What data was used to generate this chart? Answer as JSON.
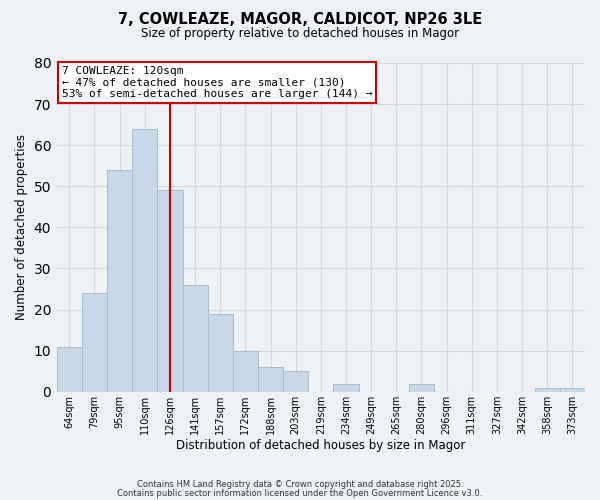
{
  "title": "7, COWLEAZE, MAGOR, CALDICOT, NP26 3LE",
  "subtitle": "Size of property relative to detached houses in Magor",
  "xlabel": "Distribution of detached houses by size in Magor",
  "ylabel": "Number of detached properties",
  "categories": [
    "64sqm",
    "79sqm",
    "95sqm",
    "110sqm",
    "126sqm",
    "141sqm",
    "157sqm",
    "172sqm",
    "188sqm",
    "203sqm",
    "219sqm",
    "234sqm",
    "249sqm",
    "265sqm",
    "280sqm",
    "296sqm",
    "311sqm",
    "327sqm",
    "342sqm",
    "358sqm",
    "373sqm"
  ],
  "values": [
    11,
    24,
    54,
    64,
    49,
    26,
    19,
    10,
    6,
    5,
    0,
    2,
    0,
    0,
    2,
    0,
    0,
    0,
    0,
    1,
    1
  ],
  "bar_color": "#c8d8e8",
  "bar_edge_color": "#aabccc",
  "vline_x_idx": 4,
  "vline_color": "#cc0000",
  "annotation_text": "7 COWLEAZE: 120sqm\n← 47% of detached houses are smaller (130)\n53% of semi-detached houses are larger (144) →",
  "annotation_box_facecolor": "#ffffff",
  "annotation_box_edgecolor": "#cc0000",
  "ylim": [
    0,
    80
  ],
  "yticks": [
    0,
    10,
    20,
    30,
    40,
    50,
    60,
    70,
    80
  ],
  "grid_color": "#d8d8d8",
  "background_color": "#eef2f6",
  "footer_line1": "Contains HM Land Registry data © Crown copyright and database right 2025.",
  "footer_line2": "Contains public sector information licensed under the Open Government Licence v3.0."
}
